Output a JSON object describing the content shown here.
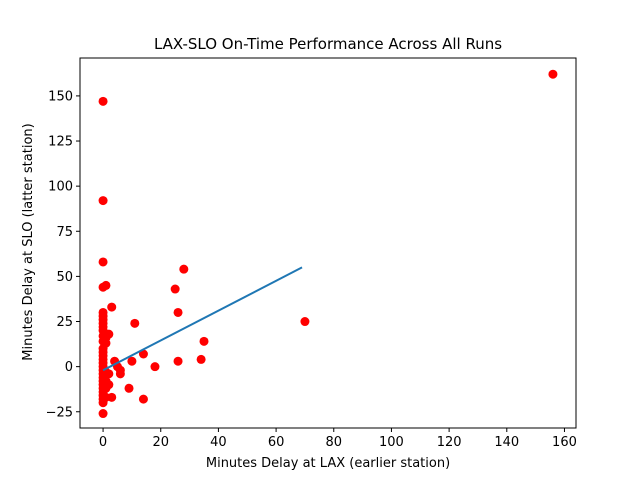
{
  "chart_data": {
    "type": "scatter",
    "title": "LAX-SLO On-Time Performance Across All Runs",
    "xlabel": "Minutes Delay at LAX (earlier station)",
    "ylabel": "Minutes Delay at SLO (latter station)",
    "xlim": [
      -8,
      164
    ],
    "ylim": [
      -34,
      171
    ],
    "xticks": [
      0,
      20,
      40,
      60,
      80,
      100,
      120,
      140,
      160
    ],
    "yticks": [
      -25,
      0,
      25,
      50,
      75,
      100,
      125,
      150
    ],
    "grid": false,
    "legend": "none",
    "points": [
      [
        0,
        147
      ],
      [
        0,
        92
      ],
      [
        0,
        58
      ],
      [
        0,
        44
      ],
      [
        1,
        45
      ],
      [
        0,
        30
      ],
      [
        0,
        28
      ],
      [
        0,
        26
      ],
      [
        0,
        24
      ],
      [
        0,
        22
      ],
      [
        0,
        20
      ],
      [
        0,
        17
      ],
      [
        1,
        16
      ],
      [
        0,
        14
      ],
      [
        1,
        13
      ],
      [
        2,
        18
      ],
      [
        0,
        10
      ],
      [
        0,
        8
      ],
      [
        0,
        6
      ],
      [
        0,
        4
      ],
      [
        0,
        2
      ],
      [
        0,
        0
      ],
      [
        0,
        -2
      ],
      [
        0,
        -4
      ],
      [
        0,
        -6
      ],
      [
        0,
        -8
      ],
      [
        0,
        -10
      ],
      [
        0,
        -12
      ],
      [
        0,
        -14
      ],
      [
        0,
        -16
      ],
      [
        0,
        -18
      ],
      [
        0,
        -20
      ],
      [
        0,
        -26
      ],
      [
        1,
        -3
      ],
      [
        1,
        -8
      ],
      [
        1,
        -12
      ],
      [
        1,
        -17
      ],
      [
        2,
        -4
      ],
      [
        2,
        -10
      ],
      [
        3,
        33
      ],
      [
        3,
        -17
      ],
      [
        4,
        3
      ],
      [
        5,
        0
      ],
      [
        6,
        -2
      ],
      [
        6,
        -4
      ],
      [
        9,
        -12
      ],
      [
        10,
        3
      ],
      [
        11,
        24
      ],
      [
        14,
        -18
      ],
      [
        14,
        7
      ],
      [
        18,
        0
      ],
      [
        25,
        43
      ],
      [
        26,
        30
      ],
      [
        26,
        3
      ],
      [
        28,
        54
      ],
      [
        34,
        4
      ],
      [
        35,
        14
      ],
      [
        70,
        25
      ],
      [
        156,
        162
      ]
    ],
    "trendline": [
      [
        0,
        -2
      ],
      [
        69,
        55
      ]
    ],
    "colors": {
      "points": "#ff0000",
      "trendline": "#1f77b4",
      "axes": "#000000",
      "background": "#ffffff"
    }
  }
}
